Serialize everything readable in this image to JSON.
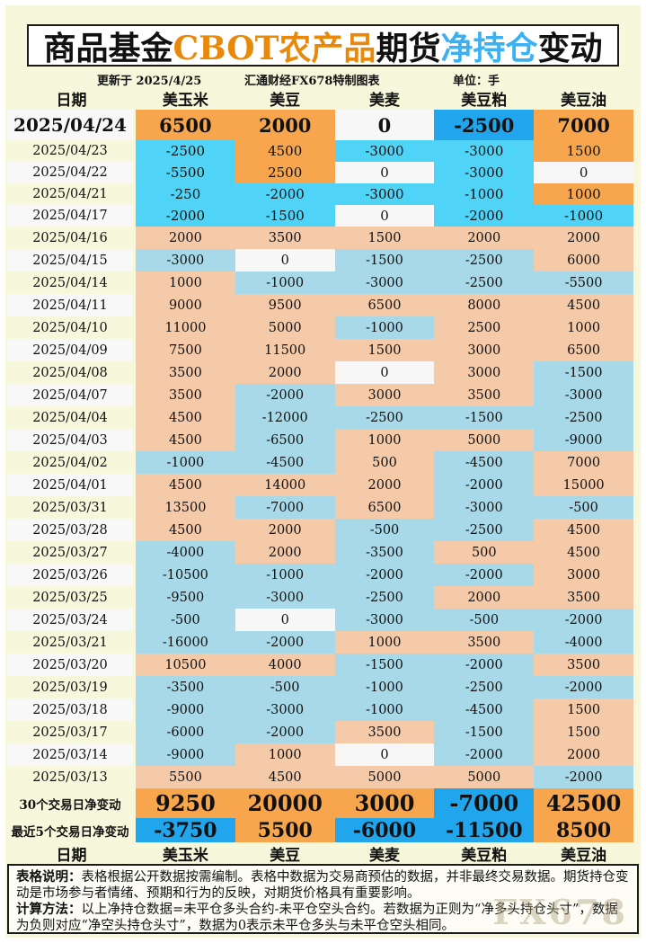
{
  "title": {
    "segments": [
      {
        "text": "商品基金"
      },
      {
        "text": "CBOT农产品"
      },
      {
        "text": "期货"
      },
      {
        "text": "净持仓"
      },
      {
        "text": "变动"
      }
    ]
  },
  "meta": {
    "updated": "更新于 2025/4/25",
    "source": "汇通财经FX678特制图表",
    "unit": "单位：手"
  },
  "chart_data": {
    "type": "table",
    "title": "商品基金CBOT农产品期货净持仓变动",
    "unit": "手",
    "updated": "2025/4/25",
    "columns": [
      "日期",
      "美玉米",
      "美豆",
      "美麦",
      "美豆粕",
      "美豆油"
    ],
    "rows": [
      [
        "2025/04/24",
        6500,
        2000,
        0,
        -2500,
        7000
      ],
      [
        "2025/04/23",
        -2500,
        4500,
        -3000,
        -3000,
        1500
      ],
      [
        "2025/04/22",
        -5500,
        2500,
        0,
        -3000,
        0
      ],
      [
        "2025/04/21",
        -250,
        -2000,
        -3000,
        -1000,
        1000
      ],
      [
        "2025/04/17",
        -2000,
        -1500,
        0,
        -2000,
        -1000
      ],
      [
        "2025/04/16",
        2000,
        3500,
        1500,
        2000,
        2000
      ],
      [
        "2025/04/15",
        -3000,
        0,
        -1500,
        -2500,
        6000
      ],
      [
        "2025/04/14",
        1000,
        -1000,
        -3000,
        -2500,
        -5500
      ],
      [
        "2025/04/11",
        9000,
        9500,
        6500,
        8000,
        4500
      ],
      [
        "2025/04/10",
        11000,
        5000,
        -1000,
        2500,
        1000
      ],
      [
        "2025/04/09",
        7500,
        11500,
        1500,
        3000,
        6500
      ],
      [
        "2025/04/08",
        3500,
        2000,
        0,
        3000,
        -1500
      ],
      [
        "2025/04/07",
        3500,
        -2000,
        3000,
        3500,
        -3000
      ],
      [
        "2025/04/04",
        4500,
        -12000,
        -2500,
        -1500,
        -2500
      ],
      [
        "2025/04/03",
        4500,
        -6500,
        1000,
        5000,
        -9000
      ],
      [
        "2025/04/02",
        -1000,
        -4500,
        500,
        -4500,
        7000
      ],
      [
        "2025/04/01",
        4500,
        14000,
        2000,
        -2000,
        15000
      ],
      [
        "2025/03/31",
        13500,
        -7000,
        6500,
        -3000,
        -500
      ],
      [
        "2025/03/28",
        4500,
        2000,
        -500,
        -2500,
        4500
      ],
      [
        "2025/03/27",
        -4000,
        2000,
        -3500,
        500,
        4500
      ],
      [
        "2025/03/26",
        -10500,
        -1000,
        -2000,
        -2000,
        3000
      ],
      [
        "2025/03/25",
        -9500,
        -3000,
        -2500,
        2000,
        3500
      ],
      [
        "2025/03/24",
        -500,
        0,
        -3000,
        -500,
        -2000
      ],
      [
        "2025/03/21",
        -16000,
        -2000,
        1000,
        3500,
        -4000
      ],
      [
        "2025/03/20",
        10500,
        4000,
        -1500,
        -2000,
        3500
      ],
      [
        "2025/03/19",
        -3500,
        -500,
        -1000,
        -2500,
        -2000
      ],
      [
        "2025/03/18",
        -9000,
        -3000,
        -1000,
        -4500,
        1500
      ],
      [
        "2025/03/17",
        -6000,
        -2000,
        3500,
        -1500,
        1500
      ],
      [
        "2025/03/14",
        -9000,
        1000,
        0,
        -2000,
        2000
      ],
      [
        "2025/03/13",
        5500,
        4500,
        5000,
        5000,
        -2000
      ]
    ],
    "summary_rows": [
      [
        "30个交易日净变动",
        9250,
        20000,
        3000,
        -7000,
        42500
      ],
      [
        "最近5个交易日净变动",
        -3750,
        5500,
        -6000,
        -11500,
        8500
      ]
    ]
  },
  "footer": {
    "notes": [
      {
        "label": "表格说明：",
        "text": "表格根据公开数据按需编制。表格中数据为交易商预估的数据，并非最终交易数据。期货持仓变动是市场参与者情绪、预期和行为的反映，对期货价格具有重要影响。"
      },
      {
        "label": "计算方法：",
        "text": "以上净持仓数据=未平仓多头合约-未平仓空头合约。若数据为正则为“净多头持仓头寸”，数据为负则对应“净空头持仓头寸”，数据为0表示未平仓多头与未平仓空头相同。"
      }
    ]
  },
  "watermark": "FX678",
  "colors": {
    "page": "#F7F7DB",
    "title_orange": "#E8890B",
    "title_blue": "#3BB0F2",
    "orange": "#F7A64D",
    "bright_cyan": "#4FD3F7",
    "dark_blue": "#21A5EC",
    "peach": "#F5CAA9",
    "soft_blue": "#A8D9E8",
    "zero_white": "#F7F7F7",
    "date_row_white": "#F8F8F8"
  }
}
